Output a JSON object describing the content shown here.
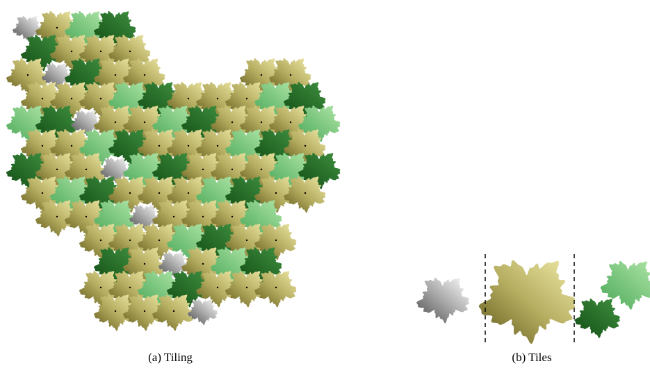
{
  "figures": [
    {
      "caption": "(a) Tiling"
    },
    {
      "caption": "(b) Tiles"
    }
  ]
}
